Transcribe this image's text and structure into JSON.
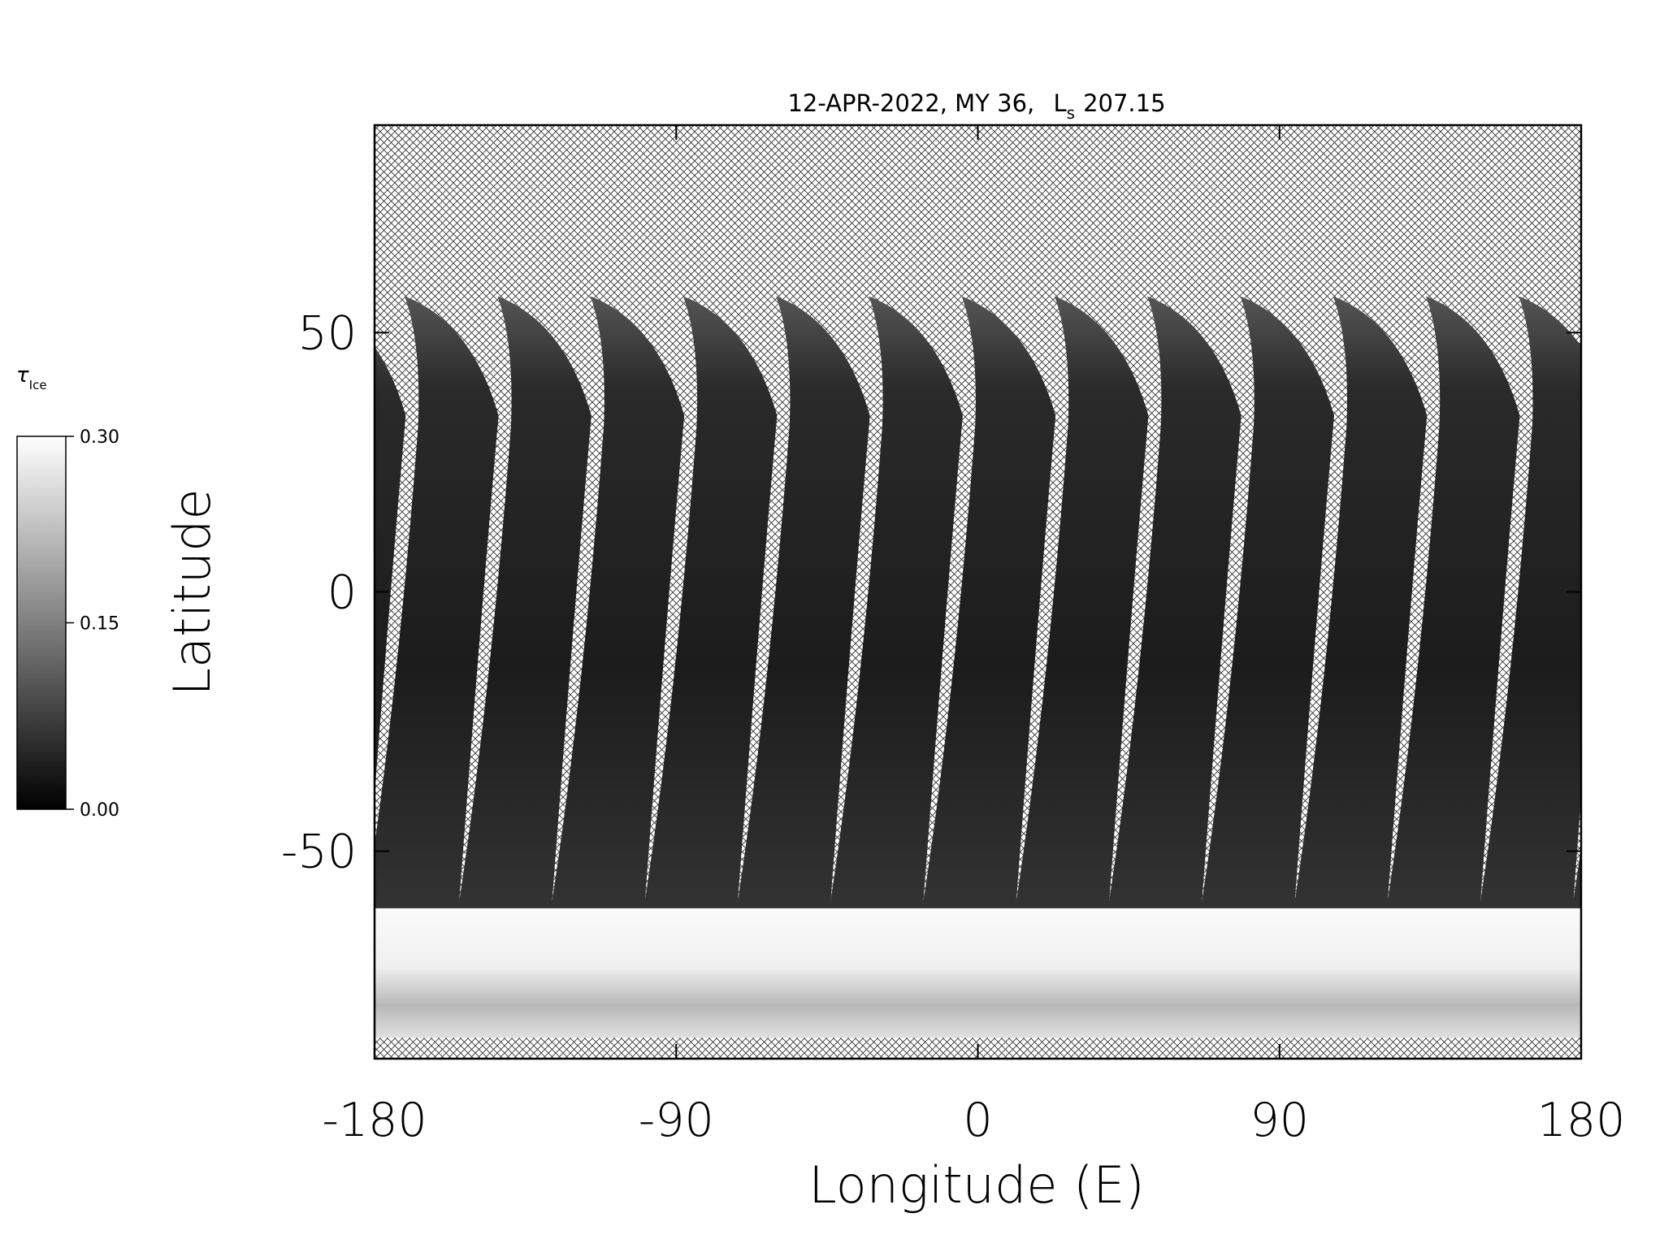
{
  "chart_data": {
    "type": "map",
    "title": "12-APR-2022, MY 36,",
    "title_symbol": "L",
    "title_subscript": "s",
    "title_value": "207.15",
    "x_label": "Longitude (E)",
    "y_label": "Latitude",
    "xlim": [
      -180,
      180
    ],
    "xticks": [
      -180,
      -90,
      0,
      90,
      180
    ],
    "ylim": [
      -90,
      90
    ],
    "yticks": [
      -50,
      0,
      50
    ],
    "colorbar": {
      "symbol": "τ",
      "subscript": "Ice",
      "range": [
        0,
        0.3
      ],
      "ticks": [
        {
          "value": 0,
          "label": "0.00"
        },
        {
          "value": 0.15,
          "label": "0.15"
        },
        {
          "value": 0.3,
          "label": "0.30"
        }
      ]
    }
  }
}
